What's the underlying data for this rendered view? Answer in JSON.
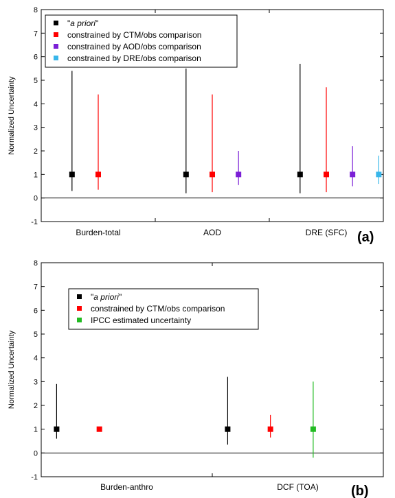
{
  "chart_data": [
    {
      "type": "errorbar",
      "panel_label": "(a)",
      "ylabel": "Normalized Uncertainty",
      "ylim": [
        -1,
        8
      ],
      "yticks": [
        -1,
        0,
        1,
        2,
        3,
        4,
        5,
        6,
        7,
        8
      ],
      "categories": [
        "Burden-total",
        "AOD",
        "DRE (SFC)"
      ],
      "legend_position": "top-left",
      "legend": [
        {
          "prefix": "\"",
          "italic": "a priori",
          "suffix": "\"",
          "color": "#000000"
        },
        {
          "text": "constrained by CTM/obs comparison",
          "color": "#ff0000"
        },
        {
          "text": "constrained by AOD/obs comparison",
          "color": "#7b1fd6"
        },
        {
          "text": "constrained by DRE/obs comparison",
          "color": "#38b6ea"
        }
      ],
      "series": [
        {
          "color": "#000000",
          "points": [
            {
              "category": "Burden-total",
              "x": 0.27,
              "y": 1,
              "low": 0.3,
              "high": 5.4
            },
            {
              "category": "AOD",
              "x": 1.27,
              "y": 1,
              "low": 0.2,
              "high": 5.5
            },
            {
              "category": "DRE (SFC)",
              "x": 2.27,
              "y": 1,
              "low": 0.2,
              "high": 5.7
            }
          ]
        },
        {
          "color": "#ff0000",
          "points": [
            {
              "category": "Burden-total",
              "x": 0.5,
              "y": 1,
              "low": 0.35,
              "high": 4.4
            },
            {
              "category": "AOD",
              "x": 1.5,
              "y": 1,
              "low": 0.25,
              "high": 4.4
            },
            {
              "category": "DRE (SFC)",
              "x": 2.5,
              "y": 1,
              "low": 0.25,
              "high": 4.7
            }
          ]
        },
        {
          "color": "#7b1fd6",
          "points": [
            {
              "category": "AOD",
              "x": 1.73,
              "y": 1,
              "low": 0.55,
              "high": 2.0
            },
            {
              "category": "DRE (SFC)",
              "x": 2.73,
              "y": 1,
              "low": 0.5,
              "high": 2.2
            }
          ]
        },
        {
          "color": "#38b6ea",
          "points": [
            {
              "category": "DRE (SFC)",
              "x": 2.96,
              "y": 1,
              "low": 0.6,
              "high": 1.8
            }
          ]
        }
      ]
    },
    {
      "type": "errorbar",
      "panel_label": "(b)",
      "ylabel": "Normalized Uncertainty",
      "ylim": [
        -1,
        8
      ],
      "yticks": [
        -1,
        0,
        1,
        2,
        3,
        4,
        5,
        6,
        7,
        8
      ],
      "categories": [
        "Burden-anthro",
        "DCF (TOA)"
      ],
      "legend_position": "upper-left",
      "legend": [
        {
          "prefix": "\"",
          "italic": "a priori",
          "suffix": "\"",
          "color": "#000000"
        },
        {
          "text": "constrained by CTM/obs comparison",
          "color": "#ff0000"
        },
        {
          "text": "IPCC estimated uncertainty",
          "color": "#22bb22"
        }
      ],
      "series": [
        {
          "color": "#000000",
          "points": [
            {
              "category": "Burden-anthro",
              "x": 0.09,
              "y": 1,
              "low": 0.6,
              "high": 2.9
            },
            {
              "category": "DCF (TOA)",
              "x": 1.09,
              "y": 1,
              "low": 0.35,
              "high": 3.2
            }
          ]
        },
        {
          "color": "#ff0000",
          "points": [
            {
              "category": "Burden-anthro",
              "x": 0.34,
              "y": 1,
              "low": 0.95,
              "high": 1.05
            },
            {
              "category": "DCF (TOA)",
              "x": 1.34,
              "y": 1,
              "low": 0.65,
              "high": 1.6
            }
          ]
        },
        {
          "color": "#22bb22",
          "points": [
            {
              "category": "DCF (TOA)",
              "x": 1.59,
              "y": 1,
              "low": -0.2,
              "high": 3.0
            }
          ]
        }
      ]
    }
  ]
}
